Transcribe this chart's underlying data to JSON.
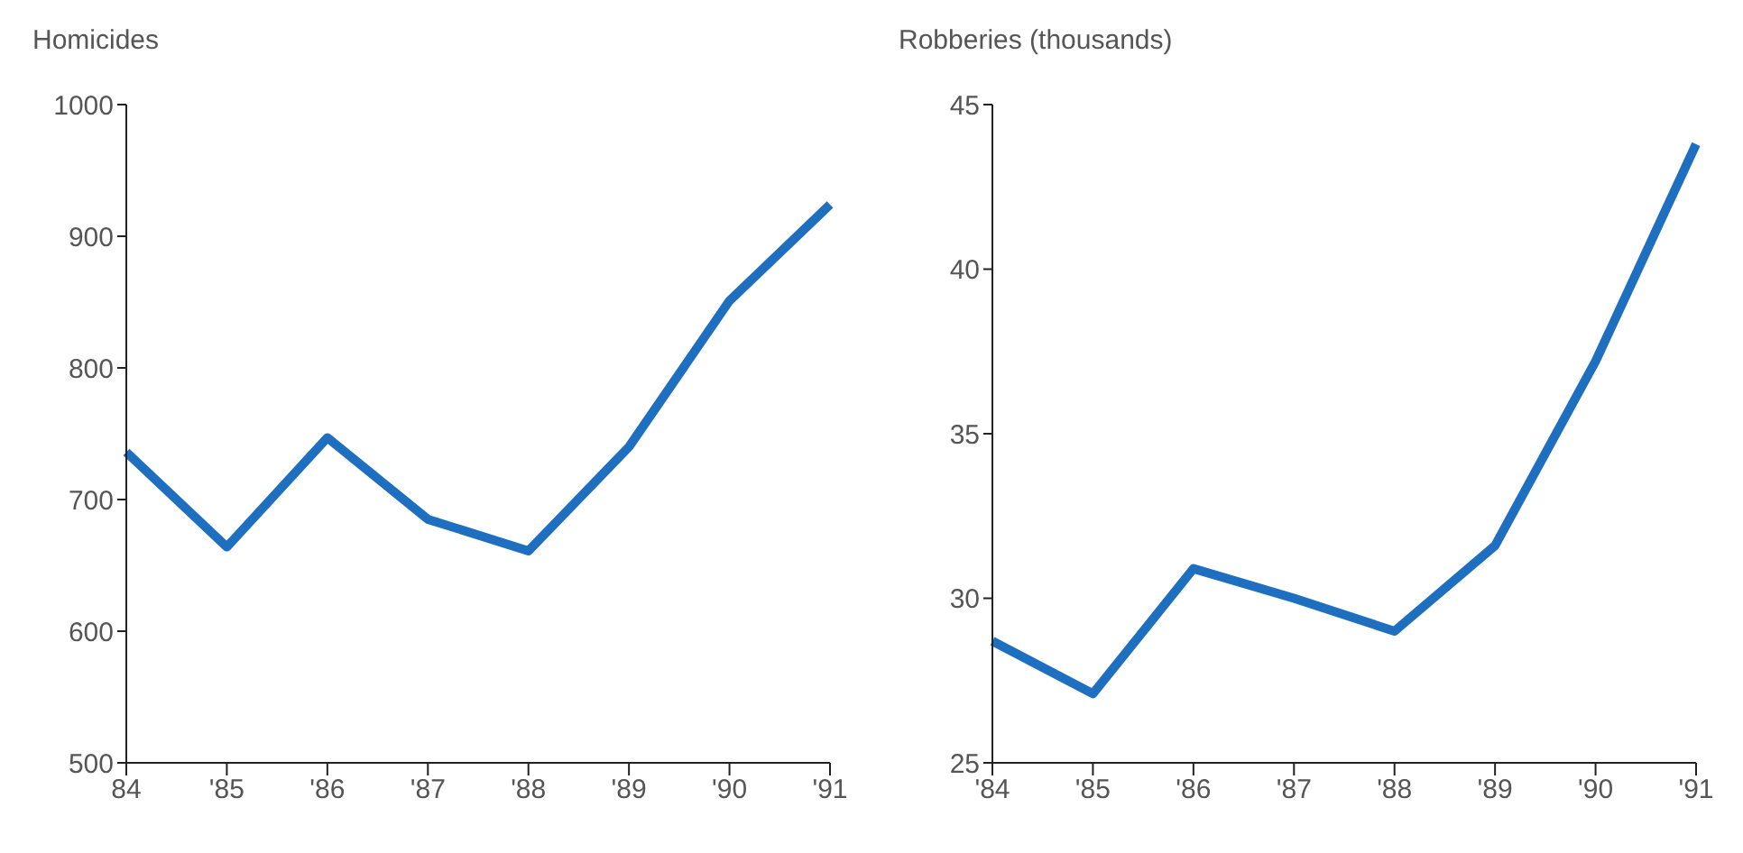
{
  "chart_data": [
    {
      "type": "line",
      "title": "Homicides",
      "categories": [
        "84",
        "'85",
        "'86",
        "'87",
        "'88",
        "'89",
        "'90",
        "'91"
      ],
      "series": [
        {
          "color": "#1f6fc0",
          "values": [
            736,
            664,
            747,
            685,
            661,
            740,
            851,
            924
          ]
        }
      ],
      "ylim": [
        500,
        1000
      ],
      "yticks": [
        500,
        600,
        700,
        800,
        900,
        1000
      ],
      "grid": false,
      "legend": false,
      "marker": "none",
      "line_style": "solid"
    },
    {
      "type": "line",
      "title": "Robberies (thousands)",
      "categories": [
        "'84",
        "'85",
        "'86",
        "'87",
        "'88",
        "'89",
        "'90",
        "'91"
      ],
      "series": [
        {
          "color": "#1f6fc0",
          "values": [
            28.7,
            27.1,
            30.9,
            30.0,
            29.0,
            31.6,
            37.2,
            43.8
          ]
        }
      ],
      "ylim": [
        25,
        45
      ],
      "yticks": [
        25,
        30,
        35,
        40,
        45
      ],
      "grid": false,
      "legend": false,
      "marker": "none",
      "line_style": "solid"
    }
  ]
}
